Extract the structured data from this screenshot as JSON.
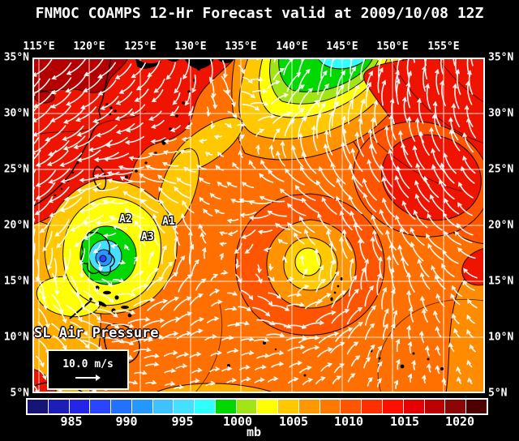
{
  "title": "FNMOC COAMPS 12-Hr Forecast valid at 2009/10/08 12Z",
  "map": {
    "field_label": "SL Air Pressure",
    "wind_scale_label": "10.0 m/s",
    "lon_labels": [
      "115°E",
      "120°E",
      "125°E",
      "130°E",
      "135°E",
      "140°E",
      "145°E",
      "150°E",
      "155°E"
    ],
    "lat_labels_left": [
      "35°N",
      "30°N",
      "25°N",
      "20°N",
      "15°N",
      "10°N",
      "5°N"
    ],
    "lat_labels_right": [
      "35°N",
      "30°N",
      "25°N",
      "20°N",
      "15°N",
      "10°N",
      "5°N"
    ],
    "annotations": [
      {
        "label": "A1"
      },
      {
        "label": "A2"
      },
      {
        "label": "A3"
      }
    ]
  },
  "colorbar": {
    "units": "mb",
    "tick_labels": [
      "985",
      "990",
      "995",
      "1000",
      "1005",
      "1010",
      "1015",
      "1020"
    ],
    "cell_colors": [
      "#151578",
      "#1D1DB8",
      "#2525E8",
      "#2A44FF",
      "#2372FF",
      "#2399FF",
      "#3DC2FF",
      "#45DFFF",
      "#2FFFFF",
      "#00D800",
      "#A2E516",
      "#FFFF00",
      "#FFC800",
      "#FF9800",
      "#FF7800",
      "#FF5500",
      "#FF3000",
      "#FF0F00",
      "#E60000",
      "#BC0000",
      "#8D0505",
      "#4E0000"
    ]
  },
  "colors": {
    "background": "#000000",
    "text": "#FFFFFF",
    "grid": "#FFFFFF",
    "coastline": "#000000",
    "wind_vector": "#FFFFFF",
    "field_base_orange": "#FF7000",
    "high_pressure_red": "#EE1400",
    "high_pressure_dark_red": "#B40000",
    "low_center_yellow": "#FFFF00",
    "low_center_green": "#00D800",
    "low_center_cyan": "#45DFFF",
    "low_center_blue": "#2399FF"
  }
}
